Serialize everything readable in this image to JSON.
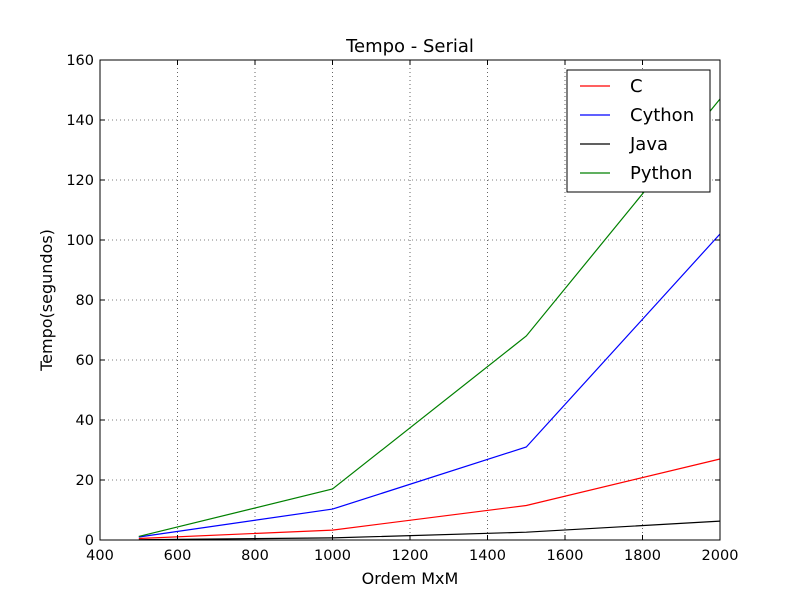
{
  "chart_data": {
    "type": "line",
    "title": "Tempo - Serial",
    "xlabel": "Ordem MxM",
    "ylabel": "Tempo(segundos)",
    "xlim": [
      400,
      2000
    ],
    "ylim": [
      0,
      160
    ],
    "xticks": [
      400,
      600,
      800,
      1000,
      1200,
      1400,
      1600,
      1800,
      2000
    ],
    "yticks": [
      0,
      20,
      40,
      60,
      80,
      100,
      120,
      140,
      160
    ],
    "grid": true,
    "legend_position": "top-right",
    "series": [
      {
        "name": "C",
        "color": "#ff0000",
        "x": [
          500,
          1000,
          1500,
          2000
        ],
        "y": [
          0.5,
          3.3,
          11.5,
          27.0
        ]
      },
      {
        "name": "Cython",
        "color": "#0000ff",
        "x": [
          500,
          1000,
          1500,
          2000
        ],
        "y": [
          1.0,
          10.3,
          31.0,
          102.0
        ]
      },
      {
        "name": "Java",
        "color": "#000000",
        "x": [
          500,
          1000,
          1500,
          2000
        ],
        "y": [
          0.1,
          0.7,
          2.6,
          6.3
        ]
      },
      {
        "name": "Python",
        "color": "#008000",
        "x": [
          500,
          1000,
          1500,
          2000
        ],
        "y": [
          1.2,
          17.0,
          68.0,
          147.0
        ]
      }
    ]
  }
}
